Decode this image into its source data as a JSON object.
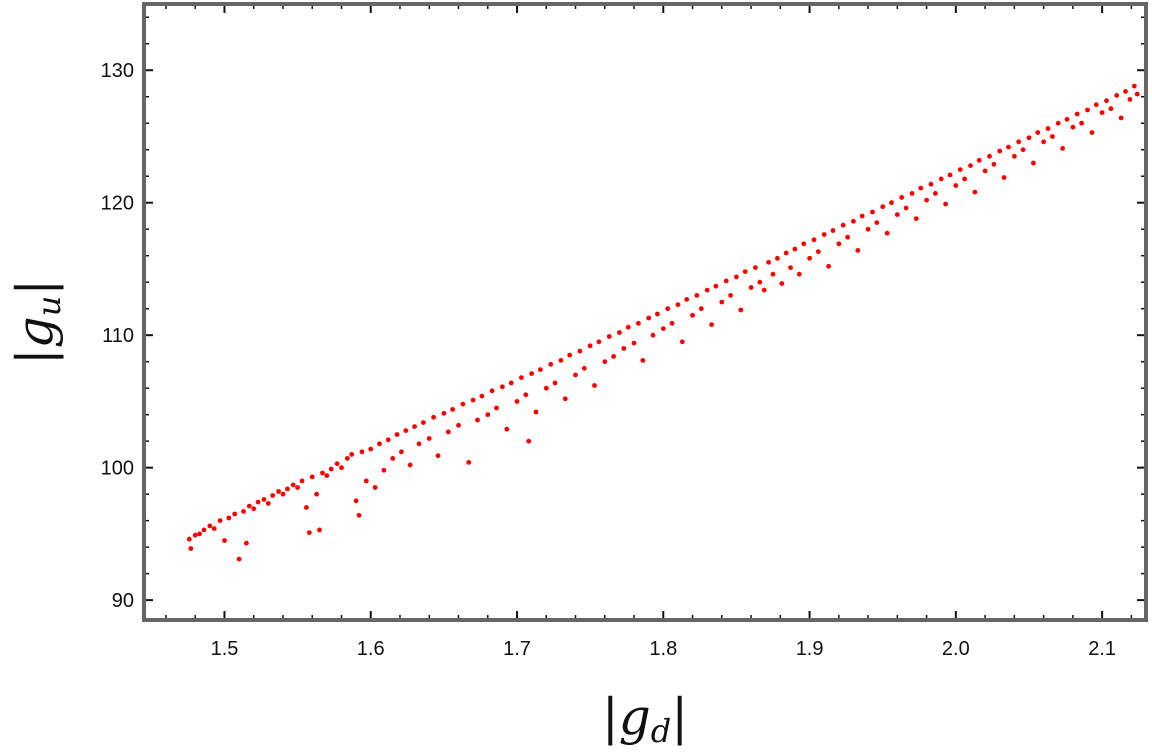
{
  "chart_data": {
    "type": "scatter",
    "xlabel": "|g_d|",
    "ylabel": "|g_u|",
    "xlabel_parts": {
      "bar_left": "|",
      "symbol": "g",
      "subscript": "d",
      "bar_right": "|"
    },
    "ylabel_parts": {
      "bar_left": "|",
      "symbol": "g",
      "subscript": "u",
      "bar_right": "|"
    },
    "xlim": [
      1.445,
      2.13
    ],
    "ylim": [
      88.5,
      135
    ],
    "x_ticks": [
      1.5,
      1.6,
      1.7,
      1.8,
      1.9,
      2.0,
      2.1
    ],
    "x_tick_labels": [
      "1.5",
      "1.6",
      "1.7",
      "1.8",
      "1.9",
      "2.0",
      "2.1"
    ],
    "y_ticks": [
      90,
      100,
      110,
      120,
      130
    ],
    "y_tick_labels": [
      "90",
      "100",
      "110",
      "120",
      "130"
    ],
    "grid": false,
    "legend": "none",
    "colors": {
      "points": "#ff0000",
      "frame": "#666666"
    },
    "series": [
      {
        "color": "#ff0000",
        "points": [
          [
            1.476,
            94.6
          ],
          [
            1.477,
            93.9
          ],
          [
            1.48,
            94.9
          ],
          [
            1.483,
            95.0
          ],
          [
            1.486,
            95.3
          ],
          [
            1.49,
            95.6
          ],
          [
            1.493,
            95.4
          ],
          [
            1.497,
            96.0
          ],
          [
            1.5,
            94.5
          ],
          [
            1.503,
            96.2
          ],
          [
            1.507,
            96.5
          ],
          [
            1.51,
            93.1
          ],
          [
            1.513,
            96.7
          ],
          [
            1.515,
            94.3
          ],
          [
            1.517,
            97.1
          ],
          [
            1.52,
            96.9
          ],
          [
            1.523,
            97.4
          ],
          [
            1.527,
            97.6
          ],
          [
            1.53,
            97.3
          ],
          [
            1.533,
            97.9
          ],
          [
            1.537,
            98.2
          ],
          [
            1.54,
            98.0
          ],
          [
            1.543,
            98.4
          ],
          [
            1.547,
            98.7
          ],
          [
            1.55,
            98.5
          ],
          [
            1.553,
            99.0
          ],
          [
            1.556,
            97.0
          ],
          [
            1.558,
            95.1
          ],
          [
            1.56,
            99.3
          ],
          [
            1.563,
            98.0
          ],
          [
            1.565,
            95.3
          ],
          [
            1.567,
            99.6
          ],
          [
            1.57,
            99.4
          ],
          [
            1.573,
            99.9
          ],
          [
            1.577,
            100.3
          ],
          [
            1.58,
            100.0
          ],
          [
            1.584,
            100.7
          ],
          [
            1.587,
            101.0
          ],
          [
            1.59,
            97.5
          ],
          [
            1.592,
            96.4
          ],
          [
            1.594,
            101.2
          ],
          [
            1.597,
            99.0
          ],
          [
            1.6,
            101.4
          ],
          [
            1.603,
            98.5
          ],
          [
            1.606,
            101.8
          ],
          [
            1.609,
            99.8
          ],
          [
            1.612,
            102.1
          ],
          [
            1.615,
            100.7
          ],
          [
            1.618,
            102.5
          ],
          [
            1.621,
            101.2
          ],
          [
            1.624,
            102.8
          ],
          [
            1.627,
            100.2
          ],
          [
            1.63,
            103.1
          ],
          [
            1.633,
            101.8
          ],
          [
            1.636,
            103.4
          ],
          [
            1.64,
            102.2
          ],
          [
            1.643,
            103.8
          ],
          [
            1.646,
            100.9
          ],
          [
            1.65,
            104.1
          ],
          [
            1.653,
            102.7
          ],
          [
            1.656,
            104.4
          ],
          [
            1.66,
            103.2
          ],
          [
            1.663,
            104.8
          ],
          [
            1.667,
            100.4
          ],
          [
            1.67,
            105.1
          ],
          [
            1.673,
            103.6
          ],
          [
            1.676,
            105.4
          ],
          [
            1.68,
            104.0
          ],
          [
            1.683,
            105.8
          ],
          [
            1.686,
            104.5
          ],
          [
            1.69,
            106.1
          ],
          [
            1.693,
            102.9
          ],
          [
            1.696,
            106.4
          ],
          [
            1.7,
            105.0
          ],
          [
            1.703,
            106.8
          ],
          [
            1.706,
            105.5
          ],
          [
            1.708,
            102.0
          ],
          [
            1.71,
            107.1
          ],
          [
            1.713,
            104.2
          ],
          [
            1.716,
            107.4
          ],
          [
            1.72,
            106.0
          ],
          [
            1.723,
            107.8
          ],
          [
            1.726,
            106.4
          ],
          [
            1.73,
            108.1
          ],
          [
            1.733,
            105.2
          ],
          [
            1.736,
            108.5
          ],
          [
            1.74,
            107.0
          ],
          [
            1.743,
            108.8
          ],
          [
            1.746,
            107.5
          ],
          [
            1.75,
            109.2
          ],
          [
            1.753,
            106.2
          ],
          [
            1.756,
            109.5
          ],
          [
            1.76,
            108.0
          ],
          [
            1.763,
            109.9
          ],
          [
            1.766,
            108.4
          ],
          [
            1.77,
            110.2
          ],
          [
            1.773,
            109.0
          ],
          [
            1.776,
            110.6
          ],
          [
            1.78,
            109.4
          ],
          [
            1.783,
            110.9
          ],
          [
            1.786,
            108.1
          ],
          [
            1.79,
            111.3
          ],
          [
            1.793,
            110.0
          ],
          [
            1.796,
            111.6
          ],
          [
            1.8,
            110.5
          ],
          [
            1.803,
            112.0
          ],
          [
            1.806,
            110.9
          ],
          [
            1.81,
            112.3
          ],
          [
            1.813,
            109.5
          ],
          [
            1.816,
            112.7
          ],
          [
            1.82,
            111.5
          ],
          [
            1.823,
            113.0
          ],
          [
            1.826,
            112.0
          ],
          [
            1.83,
            113.4
          ],
          [
            1.833,
            110.8
          ],
          [
            1.836,
            113.7
          ],
          [
            1.84,
            112.5
          ],
          [
            1.843,
            114.1
          ],
          [
            1.846,
            113.0
          ],
          [
            1.85,
            114.4
          ],
          [
            1.853,
            111.9
          ],
          [
            1.856,
            114.8
          ],
          [
            1.86,
            113.6
          ],
          [
            1.863,
            115.1
          ],
          [
            1.866,
            114.0
          ],
          [
            1.869,
            113.4
          ],
          [
            1.872,
            115.5
          ],
          [
            1.875,
            114.6
          ],
          [
            1.878,
            115.8
          ],
          [
            1.881,
            113.9
          ],
          [
            1.884,
            116.2
          ],
          [
            1.887,
            115.1
          ],
          [
            1.89,
            116.5
          ],
          [
            1.893,
            114.6
          ],
          [
            1.896,
            116.9
          ],
          [
            1.9,
            115.8
          ],
          [
            1.903,
            117.2
          ],
          [
            1.906,
            116.3
          ],
          [
            1.91,
            117.6
          ],
          [
            1.913,
            115.2
          ],
          [
            1.916,
            117.9
          ],
          [
            1.92,
            116.9
          ],
          [
            1.923,
            118.3
          ],
          [
            1.926,
            117.4
          ],
          [
            1.93,
            118.6
          ],
          [
            1.933,
            116.4
          ],
          [
            1.936,
            119.0
          ],
          [
            1.94,
            118.0
          ],
          [
            1.943,
            119.3
          ],
          [
            1.946,
            118.5
          ],
          [
            1.95,
            119.7
          ],
          [
            1.953,
            117.7
          ],
          [
            1.956,
            120.0
          ],
          [
            1.96,
            119.1
          ],
          [
            1.963,
            120.4
          ],
          [
            1.966,
            119.6
          ],
          [
            1.97,
            120.7
          ],
          [
            1.973,
            118.8
          ],
          [
            1.976,
            121.1
          ],
          [
            1.98,
            120.2
          ],
          [
            1.983,
            121.4
          ],
          [
            1.986,
            120.7
          ],
          [
            1.99,
            121.8
          ],
          [
            1.993,
            119.9
          ],
          [
            1.996,
            122.1
          ],
          [
            2.0,
            121.3
          ],
          [
            2.003,
            122.5
          ],
          [
            2.006,
            121.8
          ],
          [
            2.01,
            122.8
          ],
          [
            2.013,
            120.8
          ],
          [
            2.016,
            123.2
          ],
          [
            2.02,
            122.4
          ],
          [
            2.023,
            123.5
          ],
          [
            2.026,
            122.9
          ],
          [
            2.03,
            123.9
          ],
          [
            2.033,
            121.9
          ],
          [
            2.036,
            124.2
          ],
          [
            2.04,
            123.5
          ],
          [
            2.043,
            124.6
          ],
          [
            2.046,
            124.0
          ],
          [
            2.05,
            124.9
          ],
          [
            2.053,
            123.0
          ],
          [
            2.056,
            125.3
          ],
          [
            2.06,
            124.6
          ],
          [
            2.063,
            125.6
          ],
          [
            2.066,
            125.0
          ],
          [
            2.07,
            126.0
          ],
          [
            2.073,
            124.1
          ],
          [
            2.076,
            126.3
          ],
          [
            2.08,
            125.7
          ],
          [
            2.083,
            126.7
          ],
          [
            2.086,
            126.0
          ],
          [
            2.09,
            127.0
          ],
          [
            2.093,
            125.3
          ],
          [
            2.096,
            127.4
          ],
          [
            2.1,
            126.8
          ],
          [
            2.103,
            127.7
          ],
          [
            2.106,
            127.1
          ],
          [
            2.11,
            128.1
          ],
          [
            2.113,
            126.4
          ],
          [
            2.116,
            128.4
          ],
          [
            2.119,
            127.8
          ],
          [
            2.122,
            128.8
          ],
          [
            2.124,
            128.2
          ]
        ]
      }
    ]
  }
}
